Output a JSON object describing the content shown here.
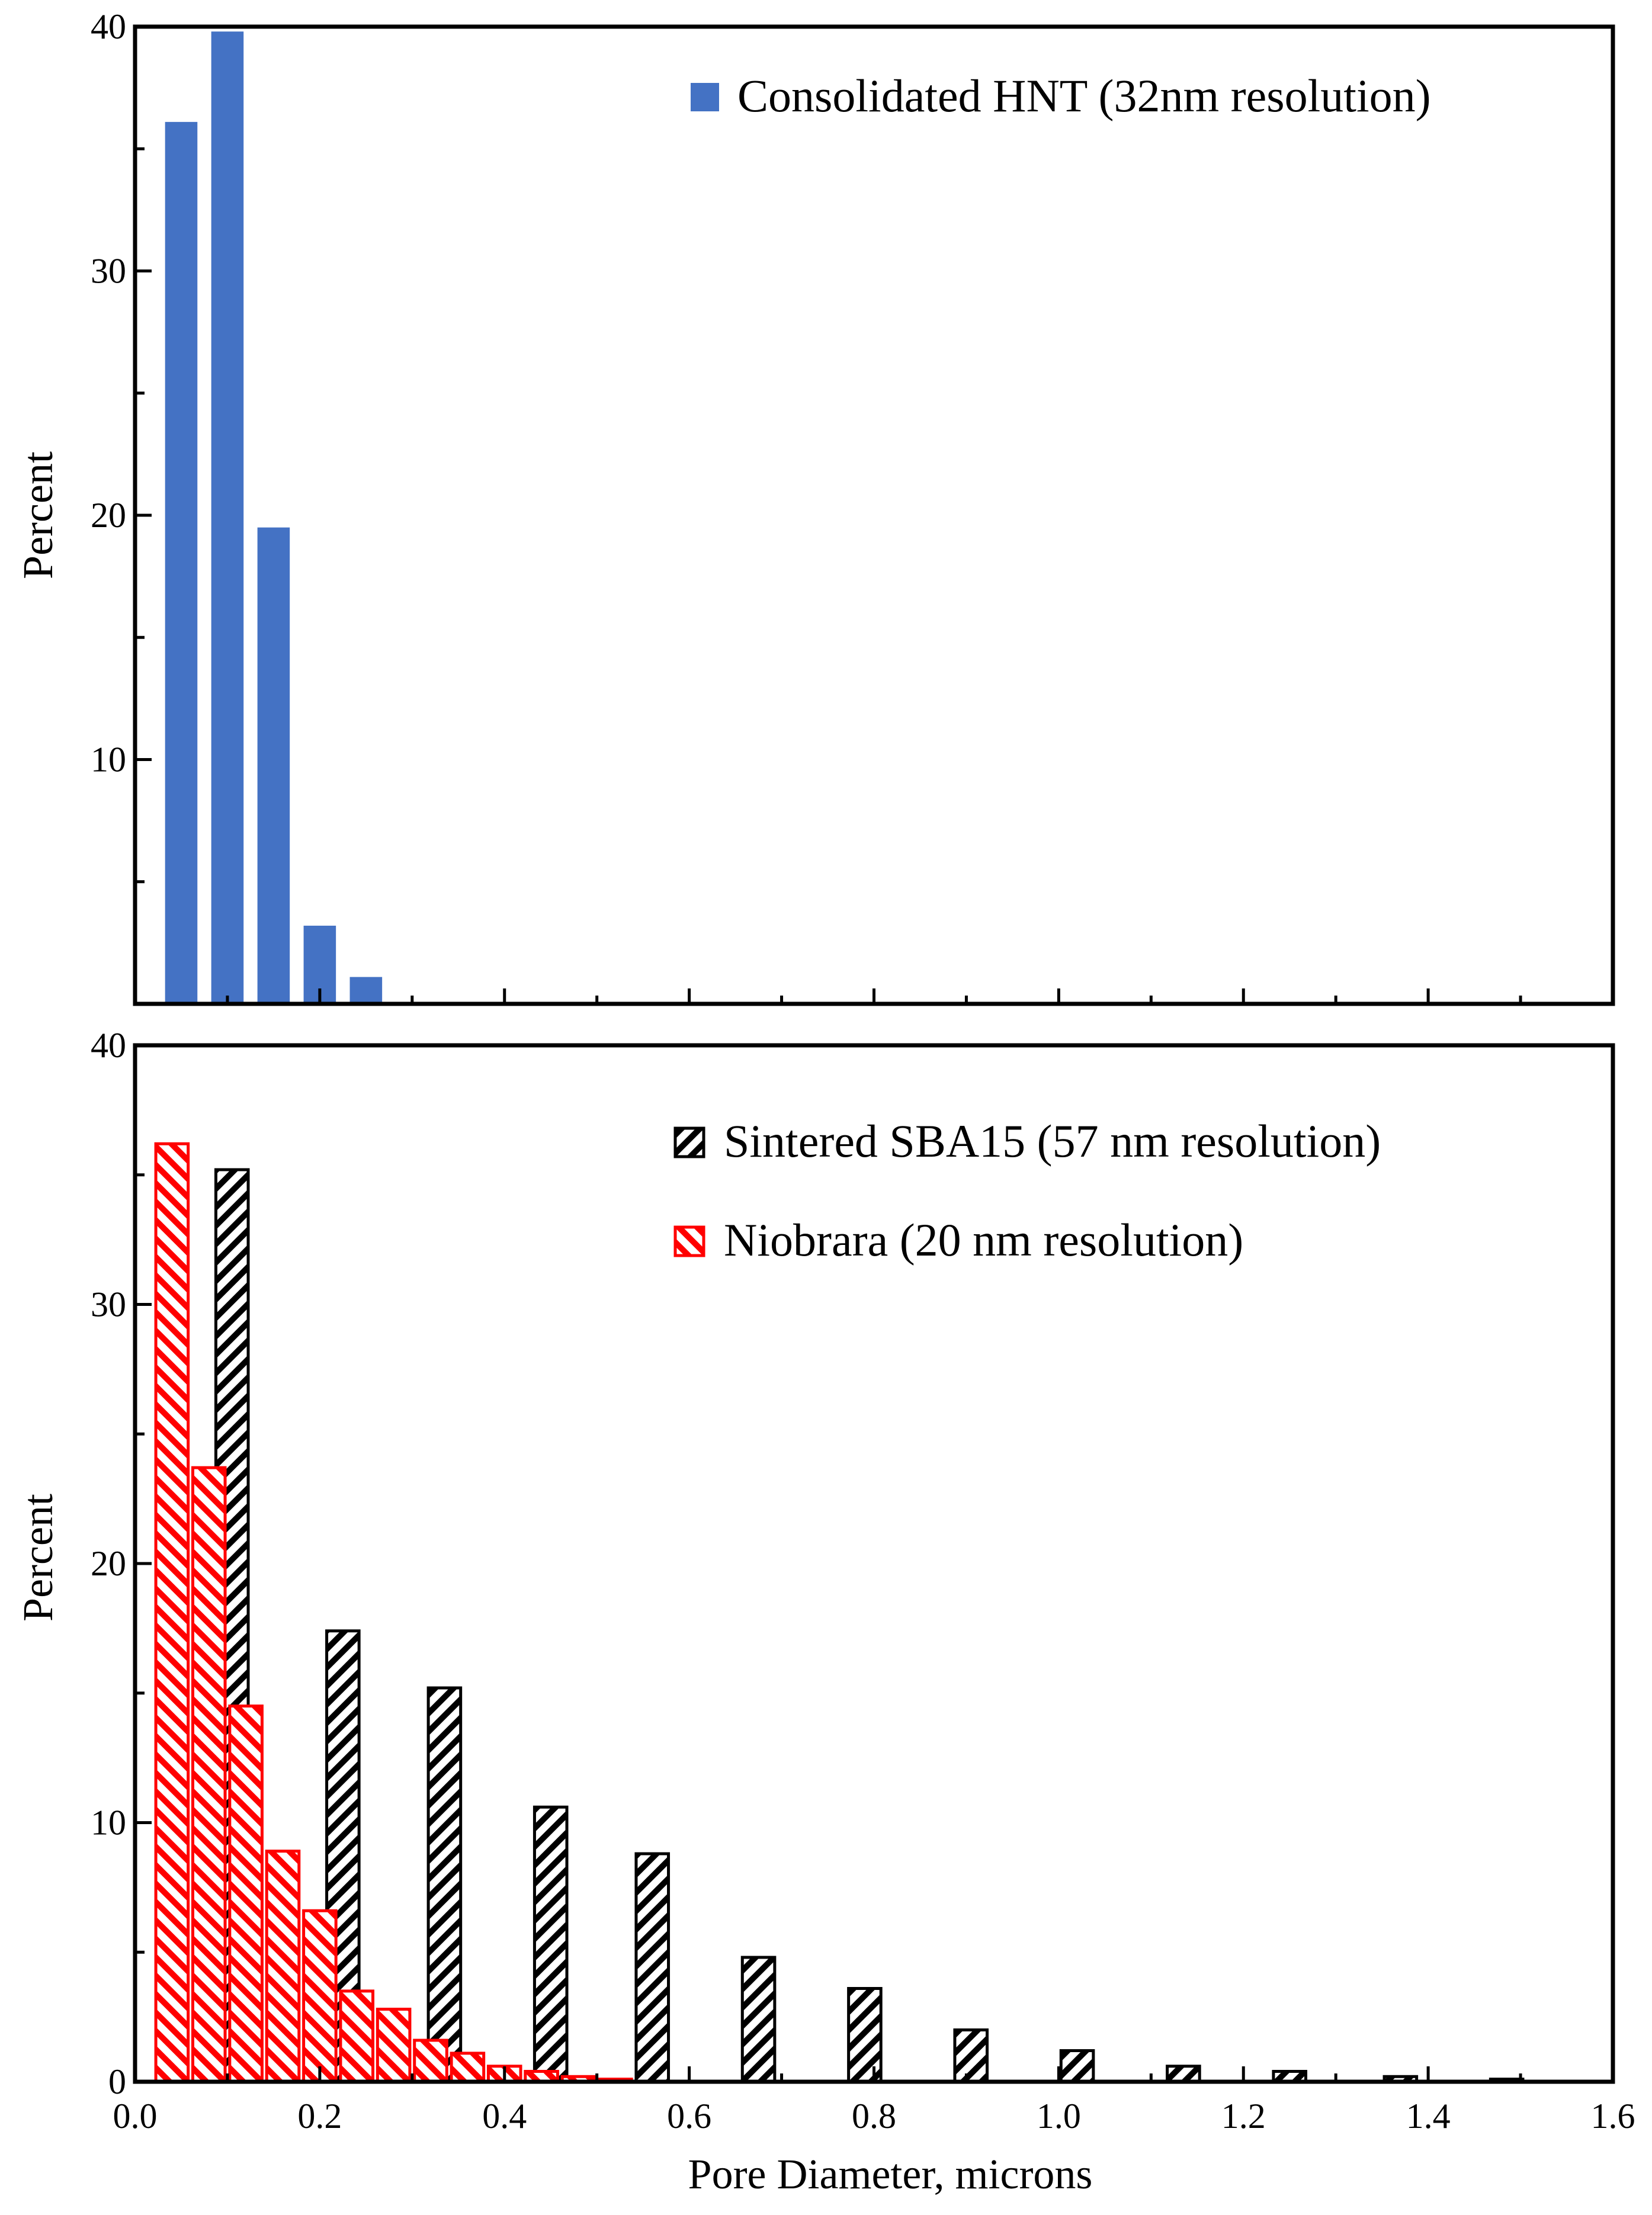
{
  "chart_data": [
    {
      "type": "bar",
      "panel": "top",
      "title": "",
      "xlabel": "",
      "ylabel": "Percent",
      "xlim": [
        0,
        1.6
      ],
      "ylim": [
        0,
        40
      ],
      "yticks": [
        10,
        20,
        30,
        40
      ],
      "ytick_labels": [
        "10",
        "20",
        "30",
        "40"
      ],
      "legend_position": "top-right",
      "bar_width": 0.035,
      "series": [
        {
          "name": "Consolidated HNT (32nm resolution)",
          "color": "#4472c4",
          "fill": "solid",
          "x": [
            0.05,
            0.1,
            0.15,
            0.2,
            0.25
          ],
          "values": [
            36.1,
            39.8,
            19.5,
            3.2,
            1.1
          ]
        }
      ]
    },
    {
      "type": "bar",
      "panel": "bottom",
      "title": "",
      "xlabel": "Pore Diameter, microns",
      "ylabel": "Percent",
      "xlim": [
        0,
        1.6
      ],
      "ylim": [
        0,
        40
      ],
      "xticks": [
        0.0,
        0.2,
        0.4,
        0.6,
        0.8,
        1.0,
        1.2,
        1.4,
        1.6
      ],
      "xtick_labels": [
        "0.0",
        "0.2",
        "0.4",
        "0.6",
        "0.8",
        "1.0",
        "1.2",
        "1.4",
        "1.6"
      ],
      "yticks": [
        0,
        10,
        20,
        30,
        40
      ],
      "ytick_labels": [
        "0",
        "10",
        "20",
        "30",
        "40"
      ],
      "legend_position": "top-right",
      "series": [
        {
          "name": "Sintered SBA15 (57 nm resolution)",
          "color": "#000000",
          "fill": "hatched",
          "bar_width": 0.035,
          "x": [
            0.105,
            0.225,
            0.335,
            0.45,
            0.56,
            0.675,
            0.79,
            0.905,
            1.02,
            1.135,
            1.25,
            1.37,
            1.485
          ],
          "values": [
            35.2,
            17.4,
            15.2,
            10.6,
            8.8,
            4.8,
            3.6,
            2.0,
            1.2,
            0.6,
            0.4,
            0.2,
            0.1
          ]
        },
        {
          "name": "Niobrara (20 nm resolution)",
          "color": "#ff0000",
          "fill": "hatched",
          "bar_width": 0.035,
          "x": [
            0.04,
            0.08,
            0.12,
            0.16,
            0.2,
            0.24,
            0.28,
            0.32,
            0.36,
            0.4,
            0.44,
            0.48,
            0.52
          ],
          "values": [
            36.2,
            23.7,
            14.5,
            8.9,
            6.6,
            3.5,
            2.8,
            1.6,
            1.1,
            0.6,
            0.4,
            0.2,
            0.1
          ]
        }
      ]
    }
  ]
}
